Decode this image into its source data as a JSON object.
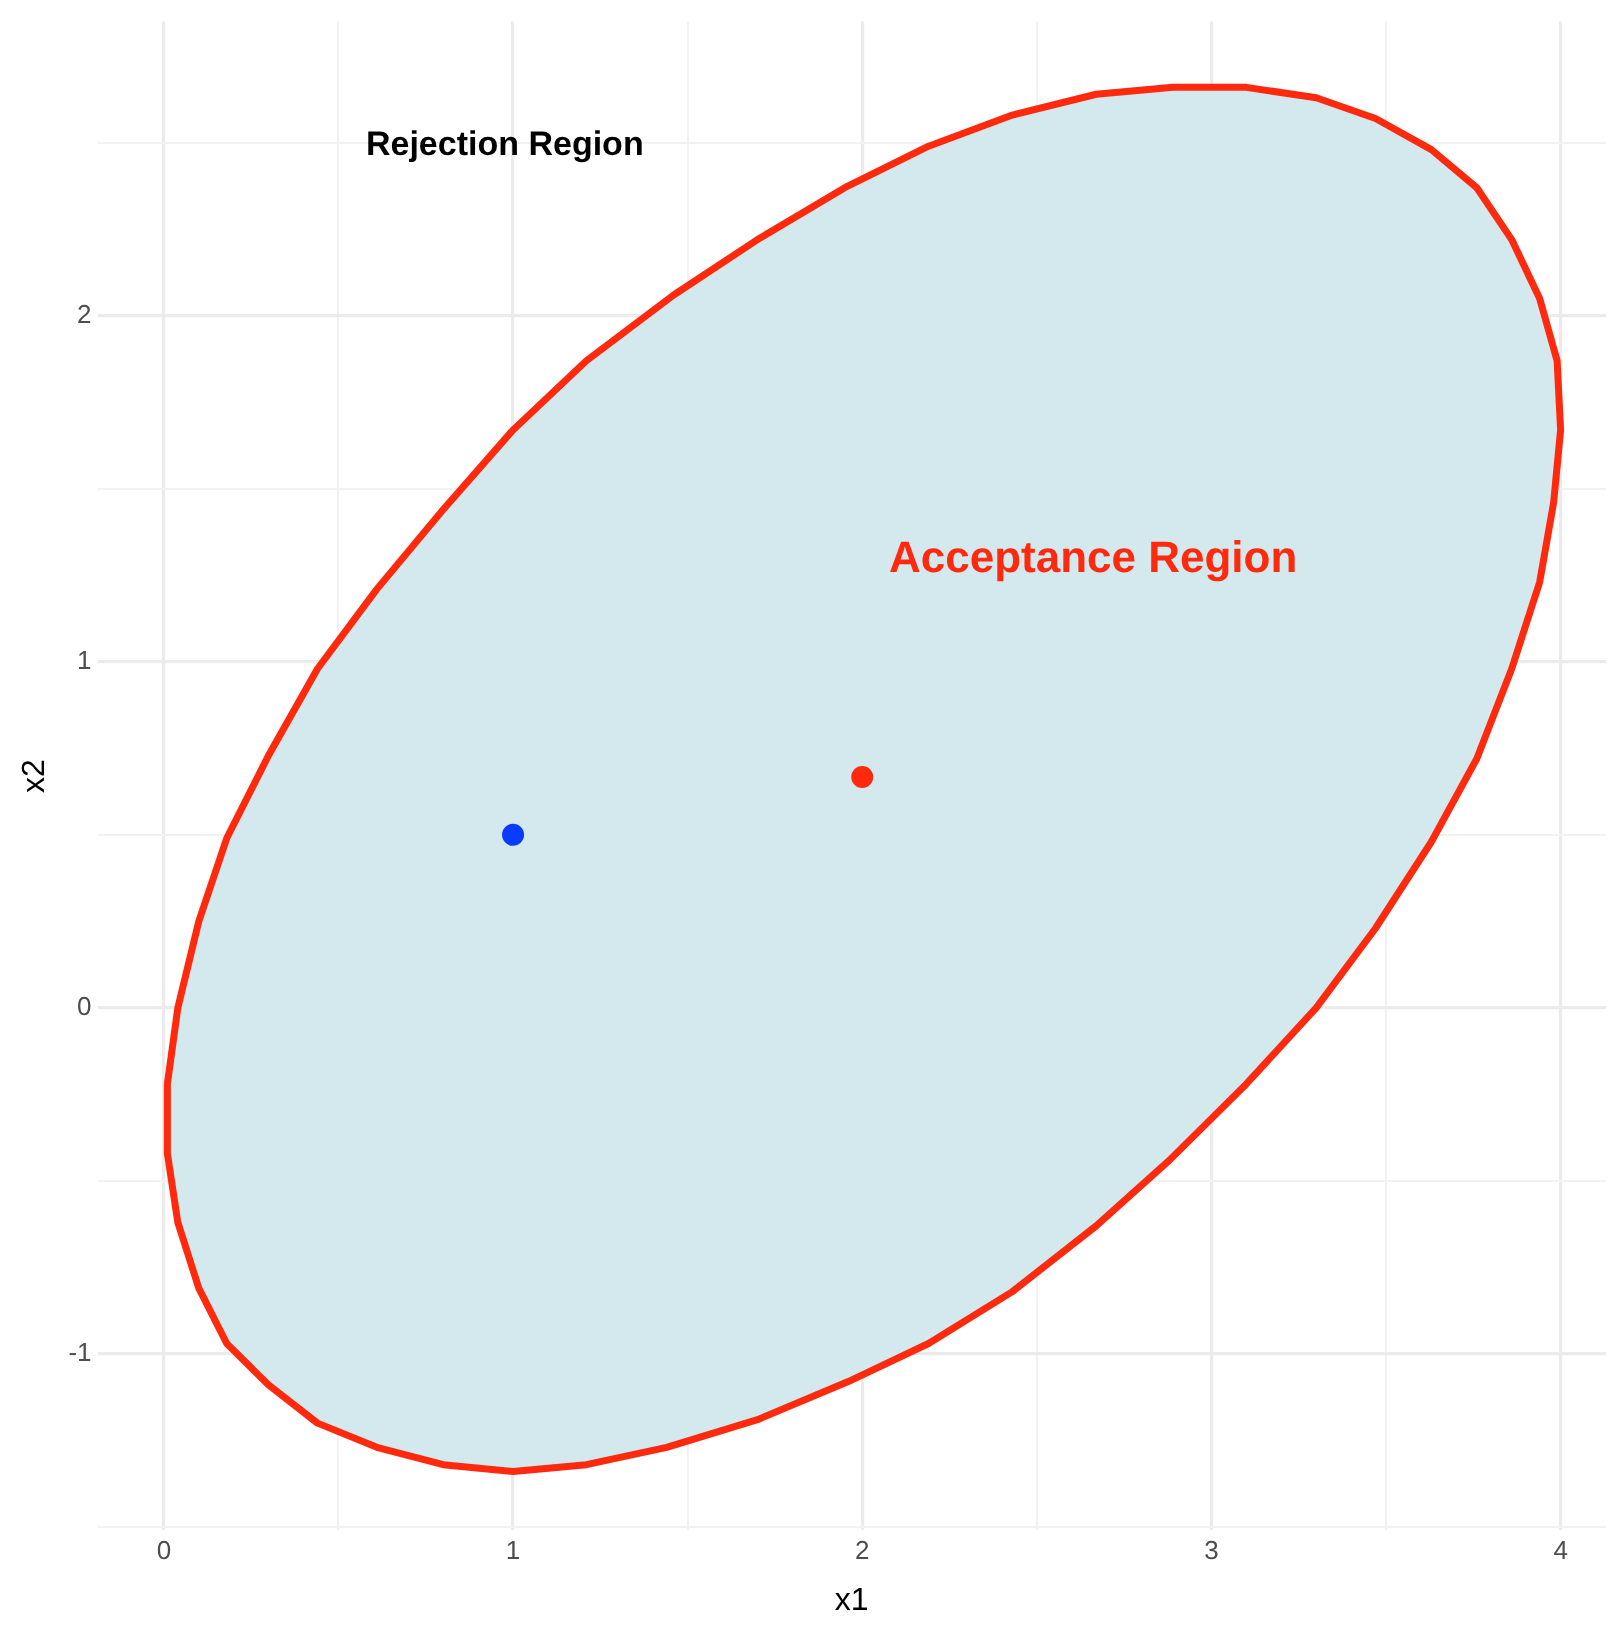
{
  "chart_data": {
    "type": "scatter",
    "xlabel": "x1",
    "ylabel": "x2",
    "xlim": [
      -0.19,
      4.13
    ],
    "ylim": [
      -1.51,
      2.85
    ],
    "xticks": [
      0,
      {
        "value": 0.5,
        "label": null
      },
      1,
      {
        "value": 1.5,
        "label": null
      },
      2,
      {
        "value": 2.5,
        "label": null
      },
      3,
      {
        "value": 3.5,
        "label": null
      },
      4
    ],
    "yticks": [
      {
        "value": -1.5,
        "label": null
      },
      -1,
      {
        "value": -0.5,
        "label": null
      },
      0,
      {
        "value": 0.5,
        "label": null
      },
      1,
      {
        "value": 1.5,
        "label": null
      },
      2,
      {
        "value": 2.5,
        "label": null
      }
    ],
    "grid": true,
    "legend": false,
    "series": [
      {
        "type": "area",
        "color": "#ff2a0d",
        "x": [
          0.01,
          0.01,
          0.04,
          0.1,
          0.18,
          0.3,
          0.44,
          0.61,
          0.8,
          1.0,
          1.21,
          1.44,
          1.7,
          1.96,
          2.19,
          2.43,
          2.67,
          2.88,
          3.1,
          3.3,
          3.47,
          3.63,
          3.76,
          3.86,
          3.94,
          3.98,
          4.0,
          3.99,
          3.94,
          3.86,
          3.76,
          3.63,
          3.47,
          3.3,
          3.1,
          2.89,
          2.67,
          2.43,
          2.19,
          1.95,
          1.7,
          1.46,
          1.21,
          1.0,
          0.8,
          0.61,
          0.44,
          0.3,
          0.18,
          0.1,
          0.04,
          0.01
        ],
        "values": [
          -0.22,
          -0.42,
          -0.62,
          -0.81,
          -0.97,
          -1.09,
          -1.2,
          -1.27,
          -1.32,
          -1.34,
          -1.32,
          -1.27,
          -1.19,
          -1.08,
          -0.97,
          -0.82,
          -0.63,
          -0.44,
          -0.22,
          0,
          0.23,
          0.48,
          0.72,
          0.98,
          1.23,
          1.46,
          1.67,
          1.87,
          2.05,
          2.22,
          2.37,
          2.48,
          2.57,
          2.63,
          2.66,
          2.66,
          2.64,
          2.58,
          2.49,
          2.37,
          2.22,
          2.06,
          1.87,
          1.67,
          1.44,
          1.21,
          0.98,
          0.73,
          0.49,
          0.25,
          0,
          -0.22
        ]
      },
      {
        "type": "scatter",
        "color": "#0a3cff",
        "x": [
          1
        ],
        "values": [
          0.5
        ]
      },
      {
        "type": "scatter",
        "color": "#ff2a0d",
        "x": [
          2
        ],
        "values": [
          0.667
        ]
      }
    ],
    "annotations": [
      "Rejection Region",
      "Acceptance Region"
    ]
  }
}
